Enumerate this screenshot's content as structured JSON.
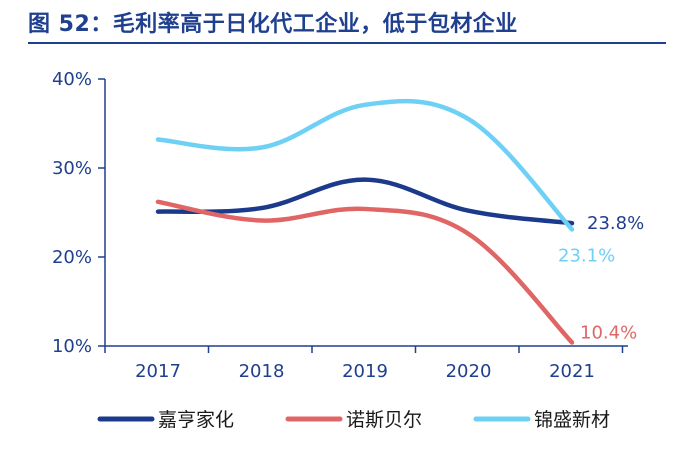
{
  "title": "图 52：毛利率高于日化代工企业，低于包材企业",
  "chart_data": {
    "type": "line",
    "title": "图 52：毛利率高于日化代工企业，低于包材企业",
    "categories": [
      "2017",
      "2018",
      "2019",
      "2020",
      "2021"
    ],
    "ylim": [
      10,
      40
    ],
    "yticks": [
      10,
      20,
      30,
      40
    ],
    "ytick_labels": [
      "10%",
      "20%",
      "30%",
      "40%"
    ],
    "grid": false,
    "legend": "bottom",
    "series": [
      {
        "name": "嘉亨家化",
        "color": "#1c3a8c",
        "values": [
          25.1,
          25.5,
          28.7,
          25.2,
          23.8
        ],
        "end_label": "23.8%"
      },
      {
        "name": "诺斯贝尔",
        "color": "#e06666",
        "values": [
          26.2,
          24.1,
          25.4,
          22.6,
          10.4
        ],
        "end_label": "10.4%"
      },
      {
        "name": "锦盛新材",
        "color": "#6ed0f5",
        "values": [
          33.2,
          32.3,
          37.1,
          35.5,
          23.1
        ],
        "end_label": "23.1%"
      }
    ]
  }
}
